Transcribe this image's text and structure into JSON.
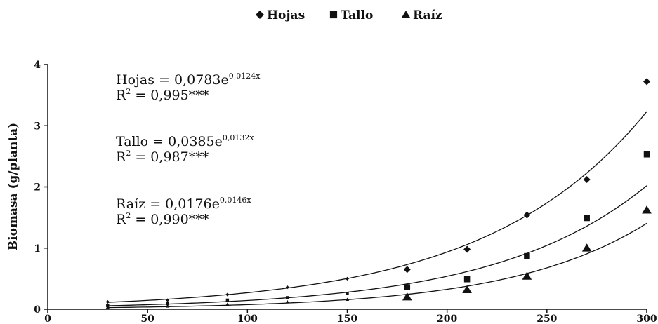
{
  "chart_data": {
    "type": "scatter",
    "xlabel": "",
    "ylabel": "Biomasa (g/planta)",
    "xlim": [
      0,
      300
    ],
    "ylim": [
      0,
      4
    ],
    "x_ticks": [
      "0",
      "50",
      "100",
      "150",
      "200",
      "250",
      "300"
    ],
    "y_ticks": [
      "0",
      "1",
      "2",
      "3",
      "4"
    ],
    "legend_position": "top-center",
    "legend": [
      {
        "name": "Hojas",
        "marker": "diamond"
      },
      {
        "name": "Tallo",
        "marker": "square"
      },
      {
        "name": "Raíz",
        "marker": "triangle"
      }
    ],
    "series": [
      {
        "name": "Hojas",
        "marker": "diamond",
        "x": [
          30,
          60,
          90,
          120,
          150,
          180,
          210,
          240,
          270,
          300
        ],
        "y": [
          0.12,
          0.15,
          0.24,
          0.36,
          0.5,
          0.65,
          0.98,
          1.54,
          2.12,
          3.72
        ],
        "fit": {
          "a": 0.0783,
          "b": 0.0124
        }
      },
      {
        "name": "Tallo",
        "marker": "square",
        "x": [
          30,
          60,
          90,
          120,
          150,
          180,
          210,
          240,
          270,
          300
        ],
        "y": [
          0.06,
          0.09,
          0.15,
          0.19,
          0.26,
          0.36,
          0.49,
          0.87,
          1.49,
          2.53
        ],
        "fit": {
          "a": 0.0385,
          "b": 0.0132
        }
      },
      {
        "name": "Raíz",
        "marker": "triangle",
        "x": [
          30,
          60,
          90,
          120,
          150,
          180,
          210,
          240,
          270,
          300
        ],
        "y": [
          0.03,
          0.05,
          0.08,
          0.12,
          0.16,
          0.2,
          0.32,
          0.54,
          1.0,
          1.62
        ],
        "fit": {
          "a": 0.0176,
          "b": 0.0146
        }
      }
    ],
    "annotations": [
      {
        "label": "Hojas = 0,0783e",
        "exponent": "0,0124x",
        "r2_prefix": "R",
        "r2_sup": "2",
        "r2_value": " = 0,995***"
      },
      {
        "label": "Tallo = 0,0385e",
        "exponent": "0,0132x",
        "r2_prefix": "R",
        "r2_sup": "2",
        "r2_value": " = 0,987***"
      },
      {
        "label": "Raíz = 0,0176e",
        "exponent": "0,0146x",
        "r2_prefix": "R",
        "r2_sup": "2",
        "r2_value": " = 0,990***"
      }
    ]
  }
}
